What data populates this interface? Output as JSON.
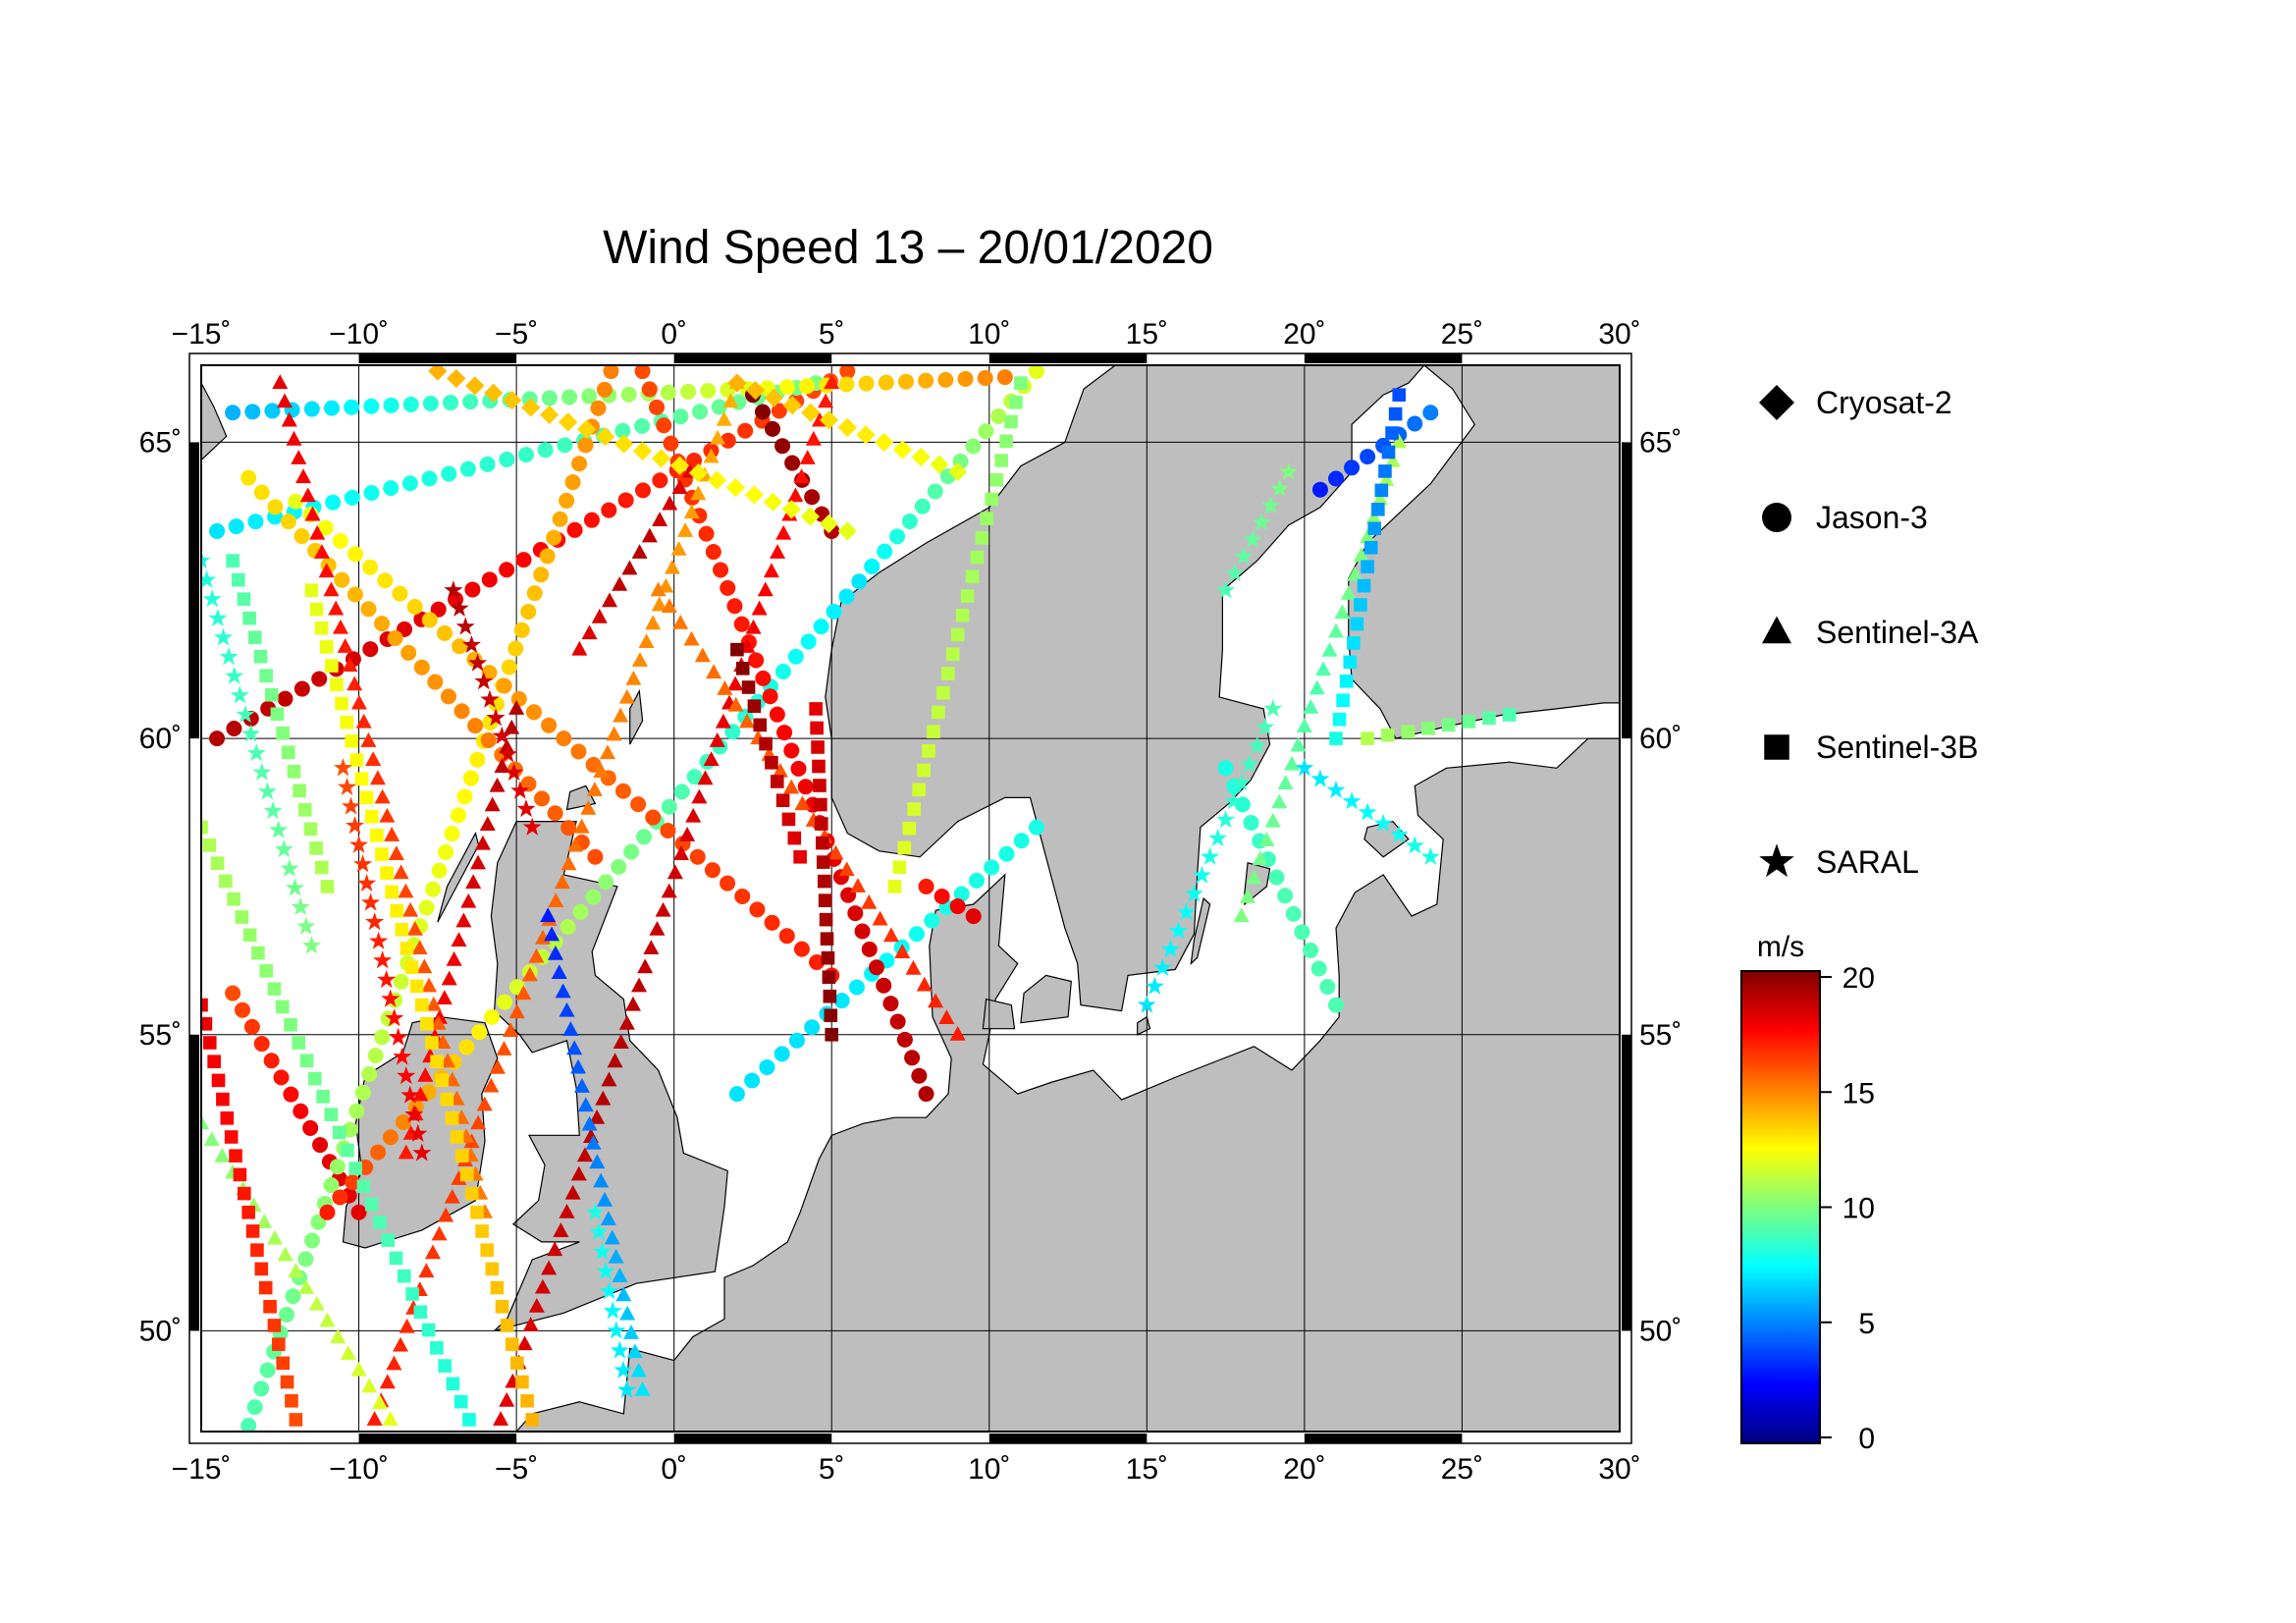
{
  "title": "Wind Speed 13 – 20/01/2020",
  "map": {
    "lon_range": [
      -15,
      30
    ],
    "lat_range": [
      48.3,
      66.3
    ],
    "lon_ticks": [
      {
        "value": -15,
        "label": "−15˚"
      },
      {
        "value": -10,
        "label": "−10˚"
      },
      {
        "value": -5,
        "label": "−5˚"
      },
      {
        "value": 0,
        "label": "0˚"
      },
      {
        "value": 5,
        "label": "5˚"
      },
      {
        "value": 10,
        "label": "10˚"
      },
      {
        "value": 15,
        "label": "15˚"
      },
      {
        "value": 20,
        "label": "20˚"
      },
      {
        "value": 25,
        "label": "25˚"
      },
      {
        "value": 30,
        "label": "30˚"
      }
    ],
    "lat_ticks": [
      {
        "value": 50,
        "label": "50˚"
      },
      {
        "value": 55,
        "label": "55˚"
      },
      {
        "value": 60,
        "label": "60˚"
      },
      {
        "value": 65,
        "label": "65˚"
      }
    ],
    "grid": true,
    "colors": {
      "land": "#bebebe",
      "sea": "#ffffff",
      "coast": "#000000",
      "grid": "#000000"
    }
  },
  "legend": {
    "placement": "right",
    "items": [
      {
        "label": "Cryosat-2",
        "symbol": "diamond"
      },
      {
        "label": "Jason-3",
        "symbol": "circle"
      },
      {
        "label": "Sentinel-3A",
        "symbol": "triangle"
      },
      {
        "label": "Sentinel-3B",
        "symbol": "square"
      },
      {
        "label": "SARAL",
        "symbol": "star"
      }
    ]
  },
  "colorbar": {
    "unit": "m/s",
    "min": 0,
    "max": 20,
    "ticks": [
      {
        "value": 0,
        "label": "0"
      },
      {
        "value": 5,
        "label": "5"
      },
      {
        "value": 10,
        "label": "10"
      },
      {
        "value": 15,
        "label": "15"
      },
      {
        "value": 20,
        "label": "20"
      }
    ],
    "colormap": [
      "#00007f",
      "#0000ff",
      "#007fff",
      "#00ffff",
      "#7fff7f",
      "#ffff00",
      "#ff7f00",
      "#ff0000",
      "#7f0000"
    ]
  },
  "chart_data": {
    "type": "scatter",
    "xlabel": "",
    "ylabel": "",
    "xlim": [
      -15,
      30
    ],
    "ylim": [
      48.3,
      66.3
    ],
    "color_variable": "wind speed (m/s)",
    "series": [
      {
        "name": "Jason-3",
        "symbol": "circle",
        "tracks": [
          {
            "from": [
              -14.5,
              60.0
            ],
            "to": [
              5.5,
              66.2
            ],
            "speed": [
              19,
              18,
              17,
              16
            ]
          },
          {
            "from": [
              -14.5,
              63.5
            ],
            "to": [
              4.5,
              66.0
            ],
            "speed": [
              7,
              8,
              9,
              10
            ]
          },
          {
            "from": [
              -14.0,
              65.5
            ],
            "to": [
              10.5,
              66.1
            ],
            "speed": [
              6,
              9,
              12,
              15
            ]
          },
          {
            "from": [
              -14.0,
              55.7
            ],
            "to": [
              -10.0,
              52.0
            ],
            "speed": [
              16,
              17,
              18,
              18
            ]
          },
          {
            "from": [
              -13.5,
              48.4
            ],
            "to": [
              -2.0,
              66.2
            ],
            "speed": [
              9,
              11,
              13,
              15
            ]
          },
          {
            "from": [
              -13.5,
              64.4
            ],
            "to": [
              -2.5,
              58.0
            ],
            "speed": [
              13,
              14,
              15,
              16
            ]
          },
          {
            "from": [
              -11.0,
              52.0
            ],
            "to": [
              11.5,
              66.2
            ],
            "speed": [
              17,
              12,
              9,
              7,
              12
            ]
          },
          {
            "from": [
              -12.0,
              64.0
            ],
            "to": [
              5.0,
              56.0
            ],
            "speed": [
              12,
              14,
              16,
              17
            ]
          },
          {
            "from": [
              2.0,
              54.0
            ],
            "to": [
              11.5,
              58.5
            ],
            "speed": [
              7,
              7,
              8,
              8
            ]
          },
          {
            "from": [
              -1.0,
              66.2
            ],
            "to": [
              8.0,
              54.0
            ],
            "speed": [
              16,
              17,
              18,
              19
            ]
          },
          {
            "from": [
              2.5,
              65.8
            ],
            "to": [
              5.0,
              63.5
            ],
            "speed": [
              20,
              19
            ]
          },
          {
            "from": [
              20.5,
              64.2
            ],
            "to": [
              24.0,
              65.5
            ],
            "speed": [
              3,
              4,
              5
            ]
          },
          {
            "from": [
              17.5,
              59.5
            ],
            "to": [
              21.0,
              55.5
            ],
            "speed": [
              8,
              9,
              9
            ]
          },
          {
            "from": [
              8.0,
              57.5
            ],
            "to": [
              9.5,
              57.0
            ],
            "speed": [
              17,
              18
            ]
          }
        ]
      },
      {
        "name": "Sentinel-3A",
        "symbol": "triangle",
        "tracks": [
          {
            "from": [
              -9.5,
              48.5
            ],
            "to": [
              2.0,
              66.0
            ],
            "speed": [
              17,
              16,
              15,
              14
            ]
          },
          {
            "from": [
              -5.5,
              48.5
            ],
            "to": [
              5.0,
              66.0
            ],
            "speed": [
              18,
              19,
              18,
              17
            ]
          },
          {
            "from": [
              -15.0,
              53.5
            ],
            "to": [
              -9.0,
              48.5
            ],
            "speed": [
              10,
              11,
              12
            ]
          },
          {
            "from": [
              -8.5,
              53.0
            ],
            "to": [
              -5.0,
              60.5
            ],
            "speed": [
              17,
              18,
              19
            ]
          },
          {
            "from": [
              -4.0,
              57.0
            ],
            "to": [
              -1.0,
              49.0
            ],
            "speed": [
              3,
              5,
              7
            ]
          },
          {
            "from": [
              -12.5,
              66.0
            ],
            "to": [
              -6.0,
              52.0
            ],
            "speed": [
              18,
              17,
              16,
              15
            ]
          },
          {
            "from": [
              -0.5,
              62.5
            ],
            "to": [
              9.0,
              55.0
            ],
            "speed": [
              15,
              16,
              17
            ]
          },
          {
            "from": [
              18.0,
              57.0
            ],
            "to": [
              23.0,
              65.0
            ],
            "speed": [
              10,
              9,
              11
            ]
          },
          {
            "from": [
              -3.0,
              61.5
            ],
            "to": [
              0.5,
              64.5
            ],
            "speed": [
              18,
              19,
              18
            ]
          }
        ]
      },
      {
        "name": "Sentinel-3B",
        "symbol": "square",
        "tracks": [
          {
            "from": [
              -15.0,
              58.5
            ],
            "to": [
              -6.5,
              48.5
            ],
            "speed": [
              11,
              10,
              9,
              8
            ]
          },
          {
            "from": [
              -11.5,
              62.5
            ],
            "to": [
              -4.5,
              48.5
            ],
            "speed": [
              12,
              13,
              14
            ]
          },
          {
            "from": [
              4.5,
              60.5
            ],
            "to": [
              5.0,
              55.0
            ],
            "speed": [
              18,
              19,
              20
            ]
          },
          {
            "from": [
              2.0,
              61.5
            ],
            "to": [
              4.0,
              58.0
            ],
            "speed": [
              20,
              19,
              18
            ]
          },
          {
            "from": [
              7.0,
              57.5
            ],
            "to": [
              11.0,
              66.0
            ],
            "speed": [
              12,
              11,
              10
            ]
          },
          {
            "from": [
              -14.0,
              63.0
            ],
            "to": [
              -11.0,
              57.5
            ],
            "speed": [
              9,
              10,
              11
            ]
          },
          {
            "from": [
              -15.0,
              55.5
            ],
            "to": [
              -12.0,
              48.5
            ],
            "speed": [
              18,
              17,
              16
            ]
          },
          {
            "from": [
              23.0,
              65.8
            ],
            "to": [
              21.0,
              60.0
            ],
            "speed": [
              4,
              6,
              8
            ]
          },
          {
            "from": [
              22.0,
              60.0
            ],
            "to": [
              26.5,
              60.4
            ],
            "speed": [
              11,
              10,
              9
            ]
          }
        ]
      },
      {
        "name": "Cryosat-2",
        "symbol": "diamond",
        "tracks": [
          {
            "from": [
              -7.5,
              66.2
            ],
            "to": [
              5.5,
              63.5
            ],
            "speed": [
              14,
              13,
              12
            ]
          },
          {
            "from": [
              2.0,
              66.0
            ],
            "to": [
              9.0,
              64.5
            ],
            "speed": [
              14,
              13,
              12
            ]
          }
        ]
      },
      {
        "name": "SARAL",
        "symbol": "star",
        "tracks": [
          {
            "from": [
              -15.0,
              63.0
            ],
            "to": [
              -11.5,
              56.5
            ],
            "speed": [
              8,
              9,
              10
            ]
          },
          {
            "from": [
              -10.5,
              59.5
            ],
            "to": [
              -8.0,
              53.0
            ],
            "speed": [
              16,
              17,
              18
            ]
          },
          {
            "from": [
              -7.0,
              62.5
            ],
            "to": [
              -4.5,
              58.5
            ],
            "speed": [
              19,
              18
            ]
          },
          {
            "from": [
              -1.5,
              49.0
            ],
            "to": [
              -2.5,
              52.0
            ],
            "speed": [
              7,
              8
            ]
          },
          {
            "from": [
              15.0,
              55.5
            ],
            "to": [
              19.0,
              60.5
            ],
            "speed": [
              7,
              8,
              9
            ]
          },
          {
            "from": [
              20.0,
              59.5
            ],
            "to": [
              24.0,
              58.0
            ],
            "speed": [
              7,
              8
            ]
          },
          {
            "from": [
              17.5,
              62.5
            ],
            "to": [
              19.5,
              64.5
            ],
            "speed": [
              9,
              10
            ]
          }
        ]
      }
    ]
  }
}
